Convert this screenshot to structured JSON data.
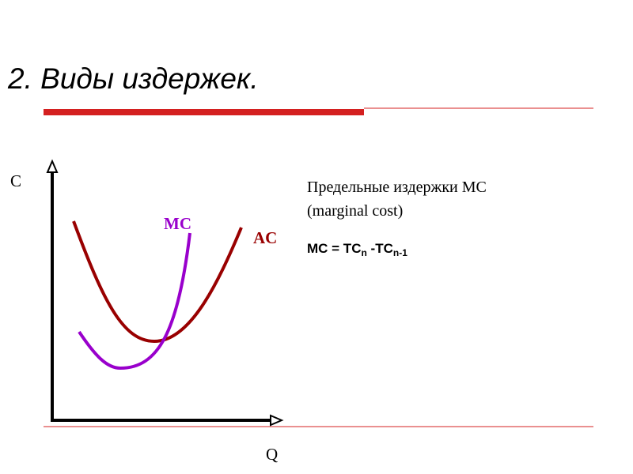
{
  "header": {
    "title": "2. Виды издержек."
  },
  "graph": {
    "y_axis_label": "C",
    "x_axis_label": "Q",
    "curves": [
      {
        "label": "MC"
      },
      {
        "label": "AC"
      }
    ]
  },
  "definition": {
    "line1": "Предельные издержки MC",
    "line2": "(marginal cost)",
    "formula": {
      "part1": "MC = TC",
      "sub1": "n",
      "part2": " -TC",
      "sub2": "n-1"
    }
  }
}
